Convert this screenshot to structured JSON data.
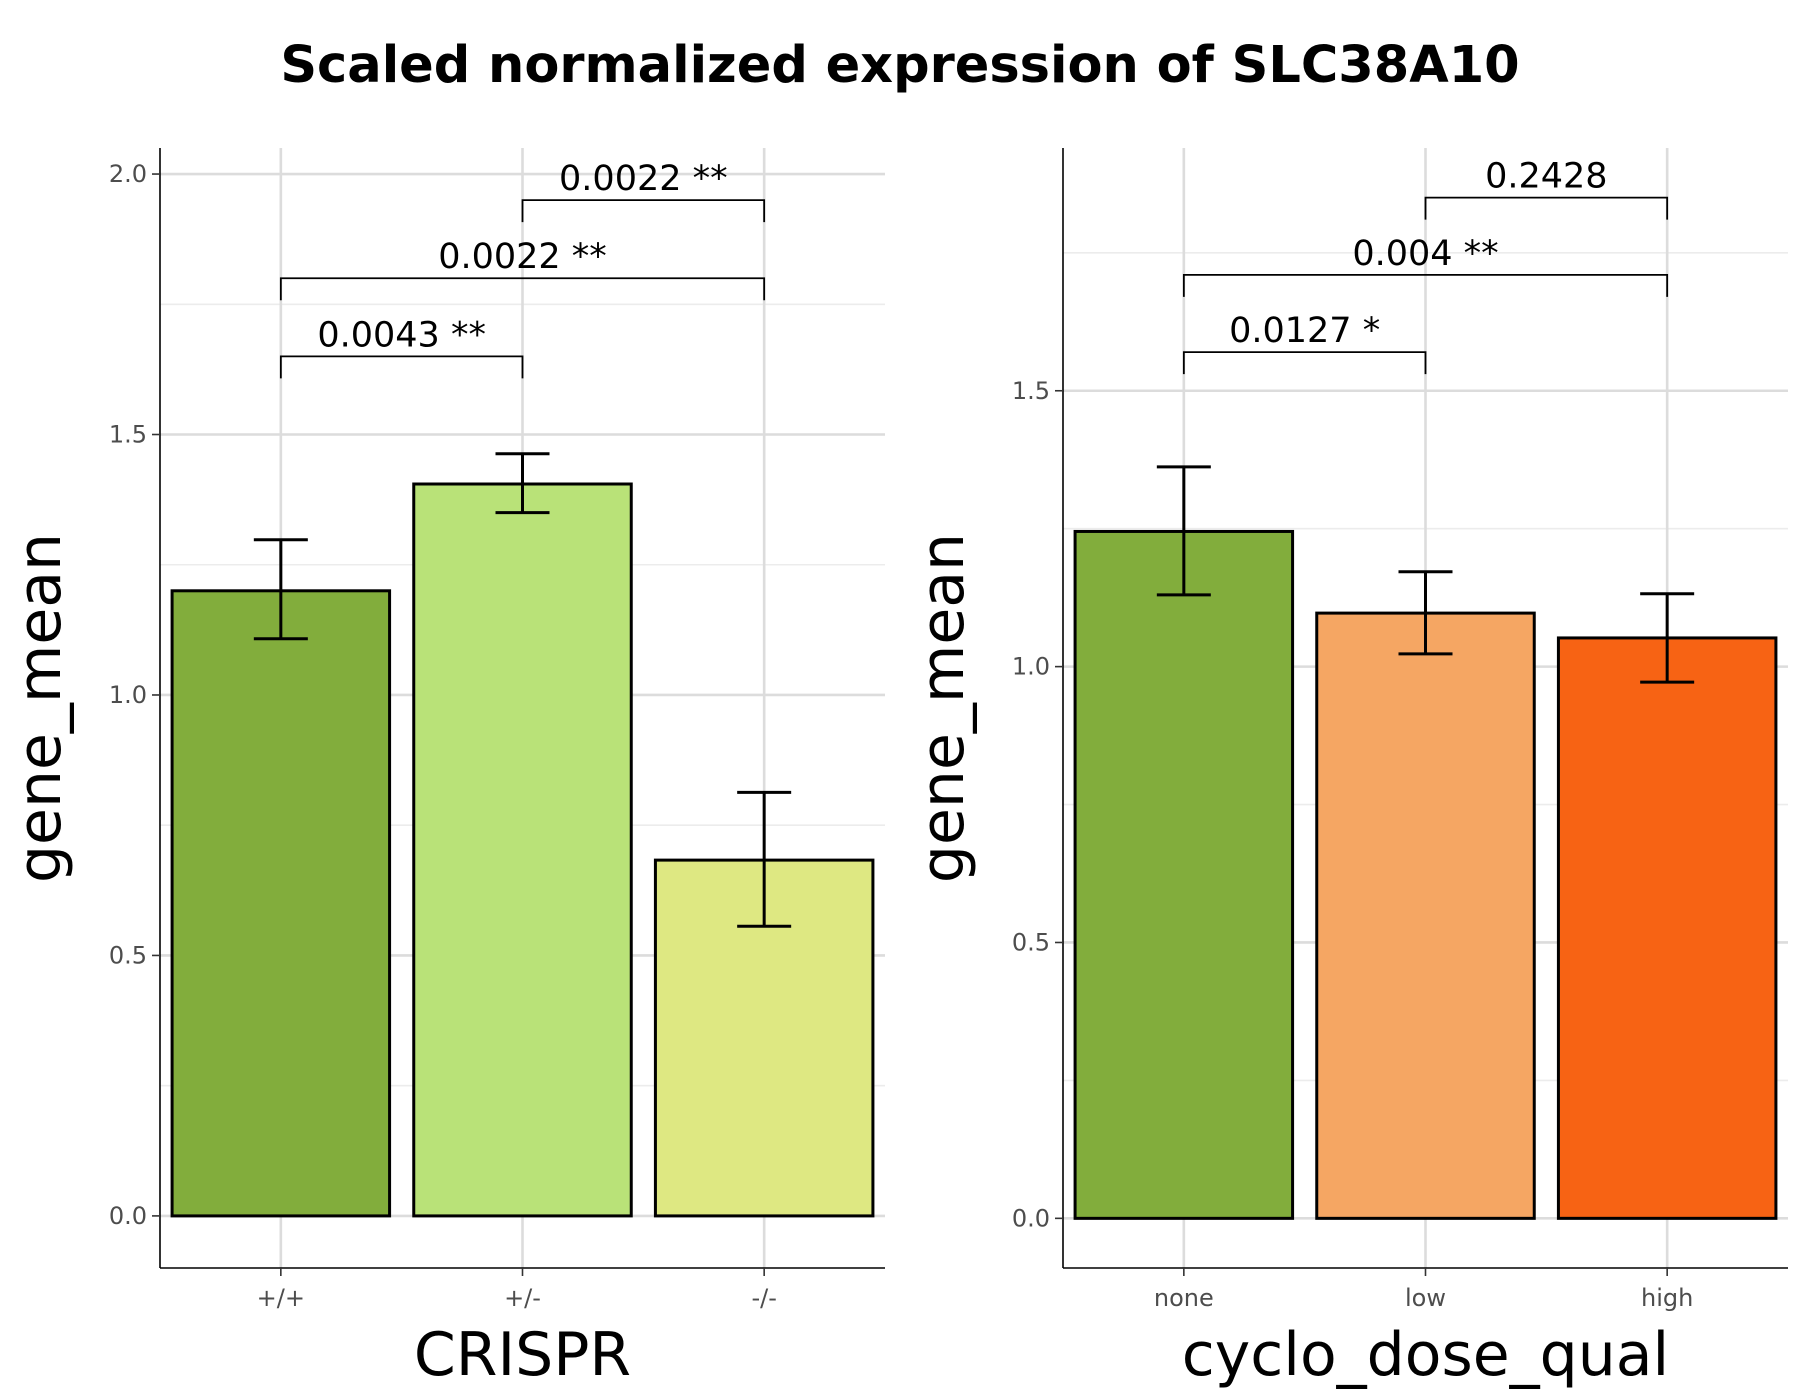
{
  "title": "Scaled normalized expression of SLC38A10",
  "chart_data": [
    {
      "type": "bar",
      "panel": "left",
      "xlabel": "CRISPR",
      "ylabel": "gene_mean",
      "categories": [
        "+/+",
        "+/-",
        "-/-"
      ],
      "values": [
        1.2,
        1.405,
        0.683
      ],
      "error_low": [
        1.108,
        1.35,
        0.556
      ],
      "error_high": [
        1.298,
        1.463,
        0.813
      ],
      "colors": [
        "#82ad3c",
        "#b9e278",
        "#dee882"
      ],
      "ylim": [
        -0.1,
        2.05
      ],
      "yticks": [
        0.0,
        0.5,
        1.0,
        1.5,
        2.0
      ],
      "ytick_labels": [
        "0.0",
        "0.5",
        "1.0",
        "1.5",
        "2.0"
      ],
      "grid": true,
      "comparisons": [
        {
          "from": 0,
          "to": 1,
          "y": 1.65,
          "label": "0.0043 **"
        },
        {
          "from": 0,
          "to": 2,
          "y": 1.8,
          "label": "0.0022 **"
        },
        {
          "from": 1,
          "to": 2,
          "y": 1.95,
          "label": "0.0022 **"
        }
      ]
    },
    {
      "type": "bar",
      "panel": "right",
      "xlabel": "cyclo_dose_qual",
      "ylabel": "gene_mean",
      "categories": [
        "none",
        "low",
        "high"
      ],
      "values": [
        1.245,
        1.097,
        1.052
      ],
      "error_low": [
        1.13,
        1.023,
        0.972
      ],
      "error_high": [
        1.362,
        1.172,
        1.132
      ],
      "colors": [
        "#82ad3c",
        "#f5a663",
        "#f76314"
      ],
      "ylim": [
        -0.09,
        1.94
      ],
      "yticks": [
        0.0,
        0.5,
        1.0,
        1.5
      ],
      "ytick_labels": [
        "0.0",
        "0.5",
        "1.0",
        "1.5"
      ],
      "grid": true,
      "comparisons": [
        {
          "from": 0,
          "to": 1,
          "y": 1.57,
          "label": "0.0127 *"
        },
        {
          "from": 0,
          "to": 2,
          "y": 1.71,
          "label": "0.004 **"
        },
        {
          "from": 1,
          "to": 2,
          "y": 1.85,
          "label": "0.2428"
        }
      ]
    }
  ]
}
